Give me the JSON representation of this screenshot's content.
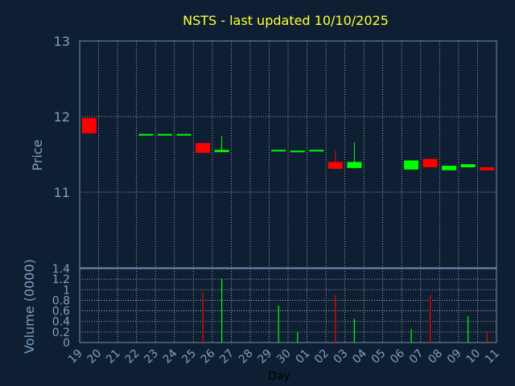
{
  "chart_data": {
    "type": "candlestick",
    "title": "NSTS - last updated 10/10/2025",
    "price_panel": {
      "ylabel": "Price",
      "ylim": [
        10.0,
        13.0
      ],
      "yticks": [
        "11",
        "12",
        "13"
      ]
    },
    "volume_panel": {
      "ylabel": "Volume (0000)",
      "ylim": [
        0,
        1.4
      ],
      "yticks": [
        "0",
        "0.2",
        "0.4",
        "0.6",
        "0.8",
        "1",
        "1.2",
        "1.4"
      ]
    },
    "xlabel": "Day",
    "x_ticks": [
      "19",
      "20",
      "21",
      "22",
      "23",
      "24",
      "25",
      "26",
      "27",
      "28",
      "29",
      "30",
      "01",
      "02",
      "03",
      "04",
      "05",
      "06",
      "07",
      "08",
      "09",
      "10",
      "11"
    ],
    "colors": {
      "up": "#00ff00",
      "down": "#ff0000",
      "background": "#0f1f33",
      "grid": "#c8c8c8",
      "title": "#ffff33"
    },
    "candles": [
      {
        "day": "19",
        "open": 11.98,
        "high": 11.98,
        "low": 11.77,
        "close": 11.78,
        "volume": 0.0
      },
      {
        "day": "22",
        "open": 11.77,
        "high": 11.77,
        "low": 11.77,
        "close": 11.77,
        "volume": 0.0
      },
      {
        "day": "23",
        "open": 11.77,
        "high": 11.77,
        "low": 11.77,
        "close": 11.77,
        "volume": 0.0
      },
      {
        "day": "24",
        "open": 11.77,
        "high": 11.77,
        "low": 11.77,
        "close": 11.77,
        "volume": 0.0
      },
      {
        "day": "25",
        "open": 11.65,
        "high": 11.65,
        "low": 11.52,
        "close": 11.52,
        "volume": 0.95
      },
      {
        "day": "26",
        "open": 11.53,
        "high": 11.74,
        "low": 11.53,
        "close": 11.56,
        "volume": 1.2
      },
      {
        "day": "29",
        "open": 11.56,
        "high": 11.56,
        "low": 11.56,
        "close": 11.56,
        "volume": 0.7
      },
      {
        "day": "30",
        "open": 11.54,
        "high": 11.55,
        "low": 11.54,
        "close": 11.55,
        "volume": 0.2
      },
      {
        "day": "01",
        "open": 11.55,
        "high": 11.56,
        "low": 11.55,
        "close": 11.56,
        "volume": 0.0
      },
      {
        "day": "02",
        "open": 11.4,
        "high": 11.56,
        "low": 11.3,
        "close": 11.31,
        "volume": 0.9
      },
      {
        "day": "03",
        "open": 11.32,
        "high": 11.66,
        "low": 11.32,
        "close": 11.4,
        "volume": 0.45
      },
      {
        "day": "06",
        "open": 11.3,
        "high": 11.42,
        "low": 11.3,
        "close": 11.42,
        "volume": 0.25
      },
      {
        "day": "07",
        "open": 11.44,
        "high": 11.44,
        "low": 11.33,
        "close": 11.33,
        "volume": 0.9
      },
      {
        "day": "08",
        "open": 11.29,
        "high": 11.35,
        "low": 11.29,
        "close": 11.35,
        "volume": 0.0
      },
      {
        "day": "09",
        "open": 11.33,
        "high": 11.37,
        "low": 11.33,
        "close": 11.37,
        "volume": 0.5
      },
      {
        "day": "10",
        "open": 11.33,
        "high": 11.33,
        "low": 11.29,
        "close": 11.29,
        "volume": 0.2
      }
    ]
  }
}
